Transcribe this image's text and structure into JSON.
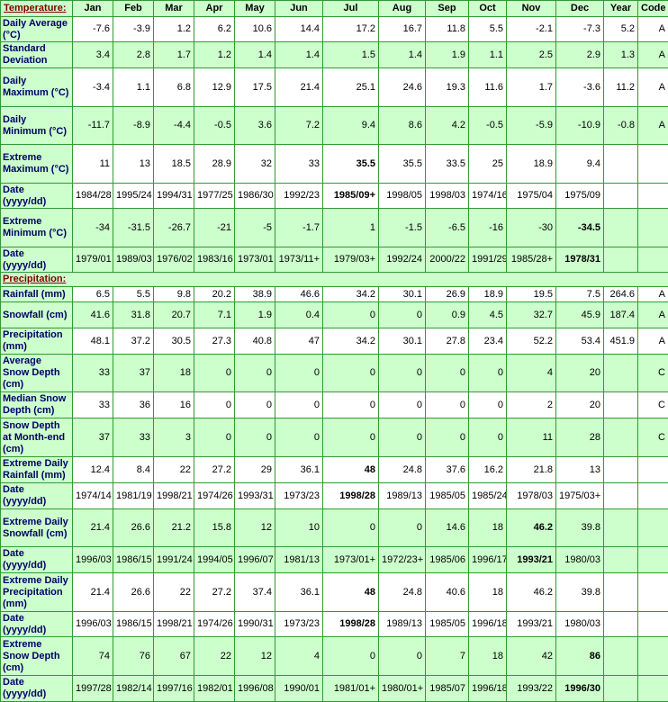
{
  "header": {
    "columns": [
      "Jan",
      "Feb",
      "Mar",
      "Apr",
      "May",
      "Jun",
      "Jul",
      "Aug",
      "Sep",
      "Oct",
      "Nov",
      "Dec",
      "Year",
      "Code"
    ]
  },
  "sections": [
    {
      "title": "Temperature:",
      "rows": [
        {
          "label": "Daily Average (°C)",
          "background": "#ffffff",
          "values": [
            "-7.6",
            "-3.9",
            "1.2",
            "6.2",
            "10.6",
            "14.4",
            "17.2",
            "16.7",
            "11.8",
            "5.5",
            "-2.1",
            "-7.3"
          ],
          "year": "5.2",
          "code": "A"
        },
        {
          "label": "Standard Deviation",
          "background": "#ccffcc",
          "values": [
            "3.4",
            "2.8",
            "1.7",
            "1.2",
            "1.4",
            "1.4",
            "1.5",
            "1.4",
            "1.9",
            "1.1",
            "2.5",
            "2.9"
          ],
          "year": "1.3",
          "code": "A"
        },
        {
          "label": "Daily Maximum (°C)",
          "background": "#ffffff",
          "values": [
            "-3.4",
            "1.1",
            "6.8",
            "12.9",
            "17.5",
            "21.4",
            "25.1",
            "24.6",
            "19.3",
            "11.6",
            "1.7",
            "-3.6"
          ],
          "year": "11.2",
          "code": "A"
        },
        {
          "label": "Daily Minimum (°C)",
          "background": "#ccffcc",
          "values": [
            "-11.7",
            "-8.9",
            "-4.4",
            "-0.5",
            "3.6",
            "7.2",
            "9.4",
            "8.6",
            "4.2",
            "-0.5",
            "-5.9",
            "-10.9"
          ],
          "year": "-0.8",
          "code": "A"
        },
        {
          "label": "Extreme Maximum (°C)",
          "background": "#ffffff",
          "bold": 6,
          "values": [
            "11",
            "13",
            "18.5",
            "28.9",
            "32",
            "33",
            "35.5",
            "35.5",
            "33.5",
            "25",
            "18.9",
            "9.4"
          ]
        },
        {
          "label": "Date (yyyy/dd)",
          "background": "#ffffff",
          "bold": 6,
          "values": [
            "1984/28",
            "1995/24",
            "1994/31",
            "1977/25",
            "1986/30",
            "1992/23",
            "1985/09+",
            "1998/05",
            "1998/03",
            "1974/16",
            "1975/04",
            "1975/09"
          ]
        },
        {
          "label": "Extreme Minimum (°C)",
          "background": "#ccffcc",
          "bold": 11,
          "values": [
            "-34",
            "-31.5",
            "-26.7",
            "-21",
            "-5",
            "-1.7",
            "1",
            "-1.5",
            "-6.5",
            "-16",
            "-30",
            "-34.5"
          ]
        },
        {
          "label": "Date (yyyy/dd)",
          "background": "#ccffcc",
          "bold": 11,
          "values": [
            "1979/01",
            "1989/03",
            "1976/02",
            "1983/16",
            "1973/01",
            "1973/11+",
            "1979/03+",
            "1992/24",
            "2000/22",
            "1991/29",
            "1985/28+",
            "1978/31"
          ]
        }
      ]
    },
    {
      "title": "Precipitation:",
      "rows": [
        {
          "label": "Rainfall (mm)",
          "background": "#ffffff",
          "values": [
            "6.5",
            "5.5",
            "9.8",
            "20.2",
            "38.9",
            "46.6",
            "34.2",
            "30.1",
            "26.9",
            "18.9",
            "19.5",
            "7.5"
          ],
          "year": "264.6",
          "code": "A"
        },
        {
          "label": "Snowfall (cm)",
          "background": "#ccffcc",
          "values": [
            "41.6",
            "31.8",
            "20.7",
            "7.1",
            "1.9",
            "0.4",
            "0",
            "0",
            "0.9",
            "4.5",
            "32.7",
            "45.9"
          ],
          "year": "187.4",
          "code": "A"
        },
        {
          "label": "Precipitation (mm)",
          "background": "#ffffff",
          "values": [
            "48.1",
            "37.2",
            "30.5",
            "27.3",
            "40.8",
            "47",
            "34.2",
            "30.1",
            "27.8",
            "23.4",
            "52.2",
            "53.4"
          ],
          "year": "451.9",
          "code": "A"
        },
        {
          "label": "Average Snow Depth (cm)",
          "background": "#ccffcc",
          "values": [
            "33",
            "37",
            "18",
            "0",
            "0",
            "0",
            "0",
            "0",
            "0",
            "0",
            "4",
            "20"
          ],
          "code": "C"
        },
        {
          "label": "Median Snow Depth (cm)",
          "background": "#ffffff",
          "values": [
            "33",
            "36",
            "16",
            "0",
            "0",
            "0",
            "0",
            "0",
            "0",
            "0",
            "2",
            "20"
          ],
          "code": "C"
        },
        {
          "label": "Snow Depth at Month-end (cm)",
          "background": "#ccffcc",
          "values": [
            "37",
            "33",
            "3",
            "0",
            "0",
            "0",
            "0",
            "0",
            "0",
            "0",
            "11",
            "28"
          ],
          "code": "C"
        },
        {
          "label": "Extreme Daily Rainfall (mm)",
          "background": "#ffffff",
          "bold": 6,
          "values": [
            "12.4",
            "8.4",
            "22",
            "27.2",
            "29",
            "36.1",
            "48",
            "24.8",
            "37.6",
            "16.2",
            "21.8",
            "13"
          ]
        },
        {
          "label": "Date (yyyy/dd)",
          "background": "#ffffff",
          "bold": 6,
          "values": [
            "1974/14",
            "1981/19",
            "1998/21",
            "1974/26",
            "1993/31",
            "1973/23",
            "1998/28",
            "1989/13",
            "1985/05",
            "1985/24",
            "1978/03",
            "1975/03+"
          ]
        },
        {
          "label": "Extreme Daily Snowfall (cm)",
          "background": "#ccffcc",
          "bold": 10,
          "values": [
            "21.4",
            "26.6",
            "21.2",
            "15.8",
            "12",
            "10",
            "0",
            "0",
            "14.6",
            "18",
            "46.2",
            "39.8"
          ]
        },
        {
          "label": "Date (yyyy/dd)",
          "background": "#ccffcc",
          "bold": 10,
          "values": [
            "1996/03",
            "1986/15",
            "1991/24",
            "1994/05",
            "1996/07",
            "1981/13",
            "1973/01+",
            "1972/23+",
            "1985/06",
            "1996/17",
            "1993/21",
            "1980/03"
          ]
        },
        {
          "label": "Extreme Daily Precipitation (mm)",
          "background": "#ffffff",
          "bold": 6,
          "values": [
            "21.4",
            "26.6",
            "22",
            "27.2",
            "37.4",
            "36.1",
            "48",
            "24.8",
            "40.6",
            "18",
            "46.2",
            "39.8"
          ]
        },
        {
          "label": "Date (yyyy/dd)",
          "background": "#ffffff",
          "bold": 6,
          "values": [
            "1996/03",
            "1986/15",
            "1998/21",
            "1974/26",
            "1990/31",
            "1973/23",
            "1998/28",
            "1989/13",
            "1985/05",
            "1996/18",
            "1993/21",
            "1980/03"
          ]
        },
        {
          "label": "Extreme Snow Depth (cm)",
          "background": "#ccffcc",
          "bold": 11,
          "values": [
            "74",
            "76",
            "67",
            "22",
            "12",
            "4",
            "0",
            "0",
            "7",
            "18",
            "42",
            "86"
          ]
        },
        {
          "label": "Date (yyyy/dd)",
          "background": "#ccffcc",
          "bold": 11,
          "values": [
            "1997/28",
            "1982/14",
            "1997/16",
            "1982/01",
            "1996/08",
            "1990/01",
            "1981/01+",
            "1980/01+",
            "1985/07",
            "1996/18",
            "1993/22",
            "1996/30"
          ]
        }
      ]
    }
  ]
}
